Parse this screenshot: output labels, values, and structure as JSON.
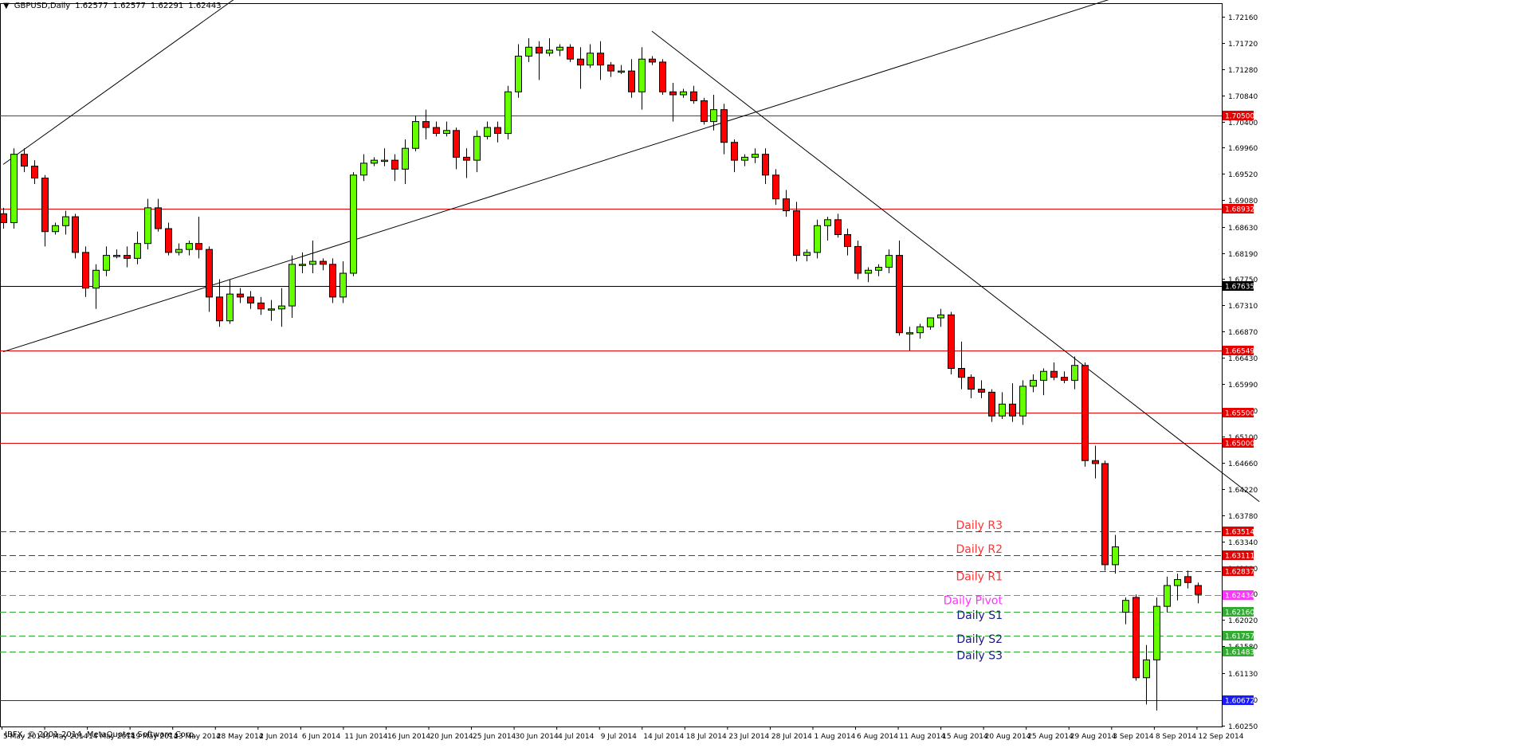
{
  "header": {
    "arrow": "▼",
    "symbol": "GBPUSD,Daily",
    "open": "1.62577",
    "high": "1.62577",
    "low": "1.62291",
    "close": "1.62443"
  },
  "footer": {
    "copyright": "IBFX, © 2001-2014, MetaQuotes Software Corp."
  },
  "colors": {
    "bull": "#66ff00",
    "bear": "#ff0000",
    "candle_outline": "#000000",
    "resistance": "#e60000",
    "support": "#33aa33",
    "pivot": "#ff33ff",
    "blue_line": "#1a1aff",
    "trendline": "#000000"
  },
  "chart_data": {
    "type": "candlestick",
    "ylim": [
      1.6023,
      1.7239
    ],
    "y_ticks": [
      "1.72160",
      "1.71720",
      "1.71280",
      "1.70840",
      "1.70400",
      "1.69960",
      "1.69520",
      "1.69080",
      "1.68630",
      "1.68190",
      "1.67750",
      "1.67310",
      "1.66870",
      "1.66430",
      "1.65990",
      "1.65550",
      "1.65100",
      "1.64660",
      "1.64220",
      "1.63780",
      "1.63340",
      "1.62900",
      "1.62460",
      "1.62020",
      "1.61580",
      "1.61130",
      "1.60690",
      "1.60250"
    ],
    "x_labels": [
      "5 May 2014",
      "9 May 2014",
      "14 May 2014",
      "19 May 2014",
      "23 May 2014",
      "28 May 2014",
      "2 Jun 2014",
      "6 Jun 2014",
      "11 Jun 2014",
      "16 Jun 2014",
      "20 Jun 2014",
      "25 Jun 2014",
      "30 Jun 2014",
      "4 Jul 2014",
      "9 Jul 2014",
      "14 Jul 2014",
      "18 Jul 2014",
      "23 Jul 2014",
      "28 Jul 2014",
      "1 Aug 2014",
      "6 Aug 2014",
      "11 Aug 2014",
      "15 Aug 2014",
      "20 Aug 2014",
      "25 Aug 2014",
      "29 Aug 2014",
      "3 Sep 2014",
      "8 Sep 2014",
      "12 Sep 2014"
    ],
    "candles": [
      [
        1.6885,
        1.6895,
        1.686,
        1.687
      ],
      [
        1.687,
        1.6995,
        1.686,
        1.6985
      ],
      [
        1.6985,
        1.6995,
        1.6955,
        1.6965
      ],
      [
        1.6965,
        1.6975,
        1.6935,
        1.6945
      ],
      [
        1.6945,
        1.695,
        1.683,
        1.6855
      ],
      [
        1.6855,
        1.687,
        1.685,
        1.6865
      ],
      [
        1.6865,
        1.689,
        1.685,
        1.688
      ],
      [
        1.688,
        1.6885,
        1.681,
        1.682
      ],
      [
        1.682,
        1.683,
        1.6745,
        1.676
      ],
      [
        1.676,
        1.68,
        1.6725,
        1.679
      ],
      [
        1.679,
        1.683,
        1.678,
        1.6815
      ],
      [
        1.6815,
        1.6825,
        1.681,
        1.6815
      ],
      [
        1.6815,
        1.683,
        1.6795,
        1.681
      ],
      [
        1.681,
        1.6855,
        1.68,
        1.6835
      ],
      [
        1.6835,
        1.691,
        1.6825,
        1.6895
      ],
      [
        1.6895,
        1.691,
        1.6855,
        1.686
      ],
      [
        1.686,
        1.687,
        1.6815,
        1.682
      ],
      [
        1.682,
        1.6835,
        1.6815,
        1.6825
      ],
      [
        1.6825,
        1.684,
        1.6815,
        1.6835
      ],
      [
        1.6835,
        1.688,
        1.681,
        1.6825
      ],
      [
        1.6825,
        1.683,
        1.672,
        1.6745
      ],
      [
        1.6745,
        1.6775,
        1.6695,
        1.6705
      ],
      [
        1.6705,
        1.6775,
        1.67,
        1.675
      ],
      [
        1.675,
        1.676,
        1.6735,
        1.6745
      ],
      [
        1.6745,
        1.6755,
        1.6725,
        1.6735
      ],
      [
        1.6735,
        1.6745,
        1.6715,
        1.6725
      ],
      [
        1.6725,
        1.674,
        1.6705,
        1.6725
      ],
      [
        1.6725,
        1.676,
        1.6695,
        1.673
      ],
      [
        1.673,
        1.6815,
        1.671,
        1.68
      ],
      [
        1.68,
        1.682,
        1.6785,
        1.68
      ],
      [
        1.68,
        1.684,
        1.6785,
        1.6805
      ],
      [
        1.6805,
        1.681,
        1.679,
        1.68
      ],
      [
        1.68,
        1.681,
        1.6735,
        1.6745
      ],
      [
        1.6745,
        1.6805,
        1.6735,
        1.6785
      ],
      [
        1.6785,
        1.6955,
        1.678,
        1.695
      ],
      [
        1.695,
        1.6985,
        1.694,
        1.697
      ],
      [
        1.697,
        1.698,
        1.6965,
        1.6975
      ],
      [
        1.6975,
        1.6995,
        1.6965,
        1.6975
      ],
      [
        1.6975,
        1.6985,
        1.694,
        1.696
      ],
      [
        1.696,
        1.701,
        1.6935,
        1.6995
      ],
      [
        1.6995,
        1.705,
        1.699,
        1.704
      ],
      [
        1.704,
        1.706,
        1.701,
        1.703
      ],
      [
        1.703,
        1.704,
        1.7015,
        1.702
      ],
      [
        1.702,
        1.704,
        1.7015,
        1.7025
      ],
      [
        1.7025,
        1.703,
        1.696,
        1.698
      ],
      [
        1.698,
        1.6995,
        1.6945,
        1.6975
      ],
      [
        1.6975,
        1.7025,
        1.6955,
        1.7015
      ],
      [
        1.7015,
        1.704,
        1.701,
        1.703
      ],
      [
        1.703,
        1.704,
        1.7005,
        1.702
      ],
      [
        1.702,
        1.71,
        1.701,
        1.709
      ],
      [
        1.709,
        1.717,
        1.708,
        1.715
      ],
      [
        1.715,
        1.718,
        1.714,
        1.7165
      ],
      [
        1.7165,
        1.7175,
        1.711,
        1.7155
      ],
      [
        1.7155,
        1.718,
        1.715,
        1.716
      ],
      [
        1.716,
        1.717,
        1.715,
        1.7165
      ],
      [
        1.7165,
        1.717,
        1.714,
        1.7145
      ],
      [
        1.7145,
        1.7165,
        1.7095,
        1.7135
      ],
      [
        1.7135,
        1.717,
        1.713,
        1.7155
      ],
      [
        1.7155,
        1.7175,
        1.711,
        1.7135
      ],
      [
        1.7135,
        1.714,
        1.7115,
        1.7125
      ],
      [
        1.7125,
        1.7135,
        1.712,
        1.7125
      ],
      [
        1.7125,
        1.7145,
        1.708,
        1.709
      ],
      [
        1.709,
        1.7165,
        1.706,
        1.7145
      ],
      [
        1.7145,
        1.715,
        1.7135,
        1.714
      ],
      [
        1.714,
        1.7145,
        1.7085,
        1.709
      ],
      [
        1.709,
        1.7105,
        1.704,
        1.7085
      ],
      [
        1.7085,
        1.7095,
        1.708,
        1.709
      ],
      [
        1.709,
        1.71,
        1.707,
        1.7075
      ],
      [
        1.7075,
        1.708,
        1.7035,
        1.704
      ],
      [
        1.704,
        1.7085,
        1.7025,
        1.706
      ],
      [
        1.706,
        1.707,
        1.6985,
        1.7005
      ],
      [
        1.7005,
        1.701,
        1.6955,
        1.6975
      ],
      [
        1.6975,
        1.6985,
        1.6965,
        1.698
      ],
      [
        1.698,
        1.6995,
        1.697,
        1.6985
      ],
      [
        1.6985,
        1.6995,
        1.6935,
        1.695
      ],
      [
        1.695,
        1.696,
        1.69,
        1.691
      ],
      [
        1.691,
        1.6925,
        1.688,
        1.689
      ],
      [
        1.689,
        1.6905,
        1.6805,
        1.6815
      ],
      [
        1.6815,
        1.6825,
        1.6805,
        1.682
      ],
      [
        1.682,
        1.6875,
        1.681,
        1.6865
      ],
      [
        1.6865,
        1.688,
        1.684,
        1.6875
      ],
      [
        1.6875,
        1.6885,
        1.6845,
        1.685
      ],
      [
        1.685,
        1.686,
        1.6815,
        1.683
      ],
      [
        1.683,
        1.684,
        1.6775,
        1.6785
      ],
      [
        1.6785,
        1.6795,
        1.677,
        1.679
      ],
      [
        1.679,
        1.68,
        1.678,
        1.6795
      ],
      [
        1.6795,
        1.6825,
        1.6785,
        1.6815
      ],
      [
        1.6815,
        1.684,
        1.668,
        1.6685
      ],
      [
        1.6685,
        1.6695,
        1.6655,
        1.6685
      ],
      [
        1.6685,
        1.67,
        1.6675,
        1.6695
      ],
      [
        1.6695,
        1.671,
        1.669,
        1.671
      ],
      [
        1.671,
        1.6725,
        1.6695,
        1.6715
      ],
      [
        1.6715,
        1.672,
        1.6615,
        1.6625
      ],
      [
        1.6625,
        1.667,
        1.659,
        1.661
      ],
      [
        1.661,
        1.6615,
        1.6575,
        1.659
      ],
      [
        1.659,
        1.6605,
        1.6575,
        1.6585
      ],
      [
        1.6585,
        1.659,
        1.6535,
        1.6545
      ],
      [
        1.6545,
        1.6585,
        1.654,
        1.6565
      ],
      [
        1.6565,
        1.66,
        1.6535,
        1.6545
      ],
      [
        1.6545,
        1.6605,
        1.653,
        1.6595
      ],
      [
        1.6595,
        1.6615,
        1.6585,
        1.6605
      ],
      [
        1.6605,
        1.6625,
        1.658,
        1.662
      ],
      [
        1.662,
        1.6635,
        1.6605,
        1.661
      ],
      [
        1.661,
        1.662,
        1.66,
        1.6605
      ],
      [
        1.6605,
        1.6645,
        1.659,
        1.663
      ],
      [
        1.663,
        1.6635,
        1.646,
        1.647
      ],
      [
        1.647,
        1.6495,
        1.644,
        1.6465
      ],
      [
        1.6465,
        1.647,
        1.6285,
        1.6295
      ],
      [
        1.6295,
        1.6345,
        1.628,
        1.6325
      ],
      [
        1.6215,
        1.624,
        1.6195,
        1.6235
      ],
      [
        1.624,
        1.6245,
        1.61,
        1.6105
      ],
      [
        1.6105,
        1.616,
        1.606,
        1.6135
      ],
      [
        1.6135,
        1.624,
        1.605,
        1.6225
      ],
      [
        1.6225,
        1.6275,
        1.6215,
        1.626
      ],
      [
        1.626,
        1.628,
        1.6235,
        1.627
      ],
      [
        1.6275,
        1.6285,
        1.6255,
        1.6265
      ],
      [
        1.626,
        1.6265,
        1.623,
        1.6245
      ]
    ],
    "levels": [
      {
        "price": 1.705,
        "label": "1.70500",
        "style": "resistance",
        "dashed": false,
        "text": ""
      },
      {
        "price": 1.68932,
        "label": "1.68932",
        "style": "resistance",
        "dashed": false,
        "text": ""
      },
      {
        "price": 1.67635,
        "label": "1.67635",
        "style": "black",
        "dashed": false,
        "text": ""
      },
      {
        "price": 1.66549,
        "label": "1.66549",
        "style": "resistance",
        "dashed": false,
        "text": ""
      },
      {
        "price": 1.655,
        "label": "1.65500",
        "style": "resistance",
        "dashed": false,
        "text": ""
      },
      {
        "price": 1.65,
        "label": "1.65000",
        "style": "resistance",
        "dashed": false,
        "text": ""
      },
      {
        "price": 1.63514,
        "label": "1.63514",
        "style": "resistance",
        "dashed": true,
        "text": "Daily R3"
      },
      {
        "price": 1.63111,
        "label": "1.63111",
        "style": "resistance",
        "dashed": true,
        "text": "Daily R2"
      },
      {
        "price": 1.62837,
        "label": "1.62837",
        "style": "resistance",
        "dashed": true,
        "text": "Daily R1"
      },
      {
        "price": 1.62434,
        "label": "1.62434",
        "style": "pivot",
        "dashed": true,
        "text": "Daily Pivot"
      },
      {
        "price": 1.6216,
        "label": "1.62160",
        "style": "support",
        "dashed": true,
        "text": "Daily S1"
      },
      {
        "price": 1.61757,
        "label": "1.61757",
        "style": "support",
        "dashed": true,
        "text": "Daily S2"
      },
      {
        "price": 1.61483,
        "label": "1.61483",
        "style": "support",
        "dashed": true,
        "text": "Daily S3"
      },
      {
        "price": 1.60672,
        "label": "1.60672",
        "style": "blue",
        "dashed": false,
        "text": ""
      }
    ],
    "trendlines": [
      {
        "x1": 0,
        "y1": 1.6968,
        "x2": 24,
        "y2": 1.7265
      },
      {
        "x1": 0,
        "y1": 1.6653,
        "x2": 111,
        "y2": 1.7265
      },
      {
        "x1": 63,
        "y1": 1.7192,
        "x2": 122,
        "y2": 1.6401
      }
    ]
  }
}
